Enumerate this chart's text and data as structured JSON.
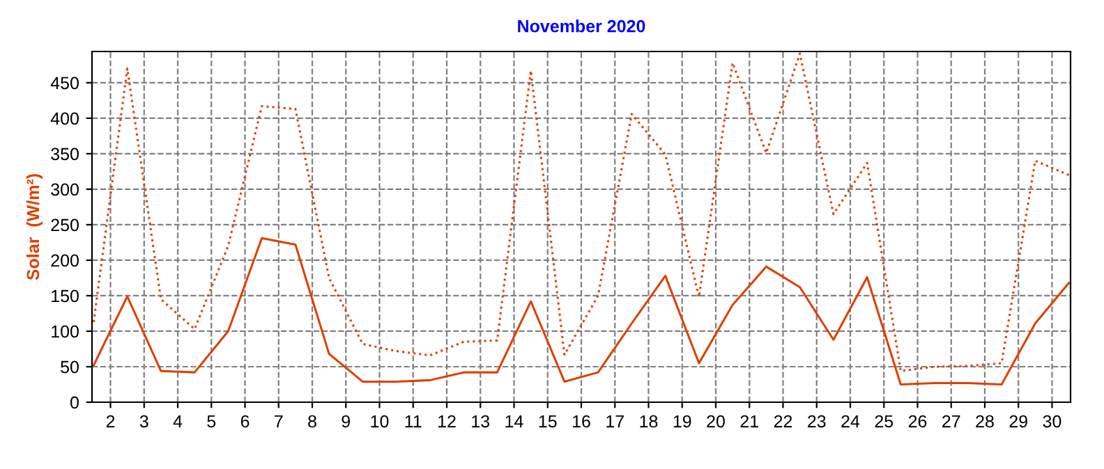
{
  "chart_data": {
    "type": "line",
    "title": "November 2020",
    "ylabel": "Solar  (W/m²)",
    "x": [
      1.5,
      2.5,
      3.5,
      4.5,
      5.5,
      6.5,
      7.5,
      8.5,
      9.5,
      10.5,
      11.5,
      12.5,
      13.5,
      14.5,
      15.5,
      16.5,
      17.5,
      18.5,
      19.5,
      20.5,
      21.5,
      22.5,
      23.5,
      24.5,
      25.5,
      26.5,
      27.5,
      28.5,
      29.5,
      30.5
    ],
    "series": [
      {
        "color": "#e04000",
        "line_style": "dotted",
        "values": [
          113,
          470,
          145,
          103,
          220,
          417,
          413,
          175,
          82,
          72,
          66,
          85,
          87,
          467,
          67,
          150,
          406,
          349,
          148,
          478,
          351,
          491,
          265,
          337,
          44,
          50,
          51,
          55,
          340,
          320
        ]
      },
      {
        "color": "#e04000",
        "line_style": "solid",
        "values": [
          52,
          149,
          44,
          42,
          100,
          231,
          222,
          68,
          29,
          29,
          31,
          42,
          42,
          142,
          29,
          42,
          111,
          178,
          55,
          137,
          191,
          162,
          88,
          176,
          25,
          27,
          27,
          25,
          111,
          168
        ]
      }
    ],
    "xlim": [
      1.45,
      30.55
    ],
    "xticks": [
      2,
      3,
      4,
      5,
      6,
      7,
      8,
      9,
      10,
      11,
      12,
      13,
      14,
      15,
      16,
      17,
      18,
      19,
      20,
      21,
      22,
      23,
      24,
      25,
      26,
      27,
      28,
      29,
      30
    ],
    "ylim": [
      0,
      494
    ],
    "yticks": [
      0,
      50,
      100,
      150,
      200,
      250,
      300,
      350,
      400,
      450
    ],
    "grid": true,
    "legend": false,
    "marker": "none"
  }
}
